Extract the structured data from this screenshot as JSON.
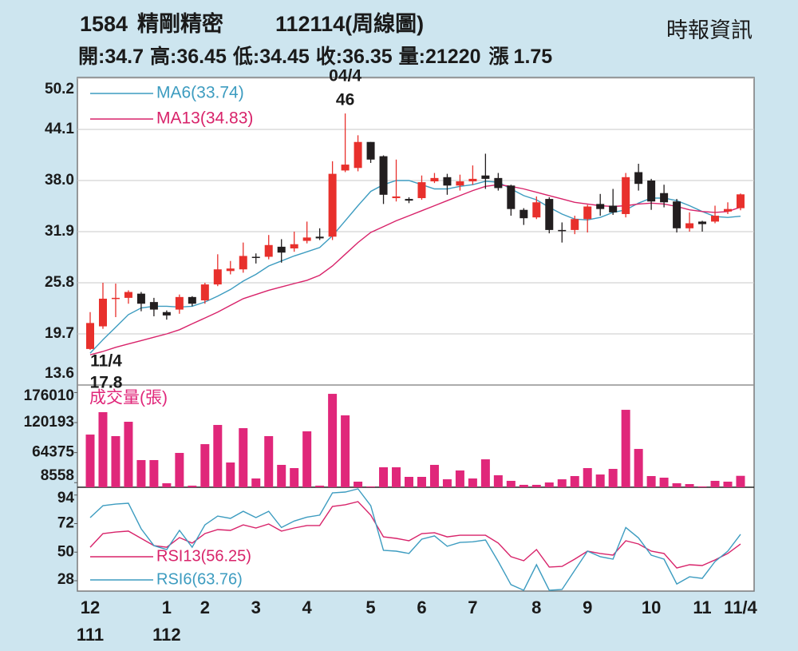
{
  "header": {
    "code": "1584",
    "name": "精剛精密",
    "period": "112114(周線圖)",
    "source": "時報資訊",
    "quote": [
      {
        "label": "開:",
        "value": 34.7
      },
      {
        "label": "高:",
        "value": 36.45
      },
      {
        "label": "低:",
        "value": 34.45
      },
      {
        "label": "收:",
        "value": 36.35
      },
      {
        "label": "量:",
        "value": 21220
      },
      {
        "label": "漲",
        "value": 1.75
      }
    ]
  },
  "chart_data": [
    {
      "type": "candlestick",
      "open": [
        17.9,
        20.6,
        23.9,
        24.0,
        24.5,
        23.5,
        22.3,
        22.6,
        24.1,
        23.7,
        25.6,
        27.2,
        27.4,
        28.9,
        28.9,
        30.1,
        29.9,
        30.8,
        31.3,
        31.3,
        39.2,
        39.5,
        42.6,
        40.9,
        35.9,
        35.8,
        35.9,
        37.9,
        38.4,
        37.4,
        37.9,
        38.6,
        38.3,
        37.4,
        34.5,
        33.6,
        35.8,
        32.1,
        32.1,
        33.4,
        35.2,
        35.0,
        34.0,
        39.0,
        38.0,
        36.5,
        35.5,
        32.3,
        33.1,
        33.1,
        34.3,
        34.7
      ],
      "high": [
        22.3,
        25.8,
        25.7,
        24.9,
        24.7,
        24.0,
        22.5,
        24.4,
        24.2,
        25.8,
        29.2,
        28.4,
        30.6,
        29.3,
        31.5,
        31.0,
        31.9,
        33.1,
        32.3,
        40.3,
        46,
        43.4,
        42.6,
        41.0,
        40.5,
        36.0,
        38.6,
        38.9,
        38.8,
        38.7,
        39.8,
        41.2,
        38.9,
        37.5,
        34.7,
        36.1,
        36.0,
        33.0,
        33.8,
        35.1,
        36.4,
        37.0,
        38.9,
        40.0,
        38.2,
        37.5,
        35.8,
        34.2,
        33.2,
        35.0,
        35.4,
        36.45
      ],
      "low": [
        17.8,
        20.3,
        21.7,
        23.3,
        22.4,
        21.8,
        21.4,
        22.1,
        23.0,
        23.3,
        25.4,
        26.8,
        27.0,
        28.1,
        28.6,
        28.2,
        29.5,
        30.5,
        30.9,
        30.9,
        39.0,
        39.1,
        40.1,
        35.2,
        35.5,
        35.3,
        35.7,
        37.7,
        36.3,
        36.8,
        37.5,
        37.0,
        36.8,
        33.8,
        32.7,
        33.4,
        31.7,
        30.6,
        31.6,
        31.8,
        33.8,
        33.9,
        33.6,
        36.8,
        34.5,
        34.8,
        31.8,
        31.9,
        31.9,
        32.9,
        34.0,
        34.45
      ],
      "close": [
        21.0,
        23.9,
        24.0,
        24.7,
        23.3,
        22.6,
        21.9,
        24.1,
        23.3,
        25.6,
        27.4,
        27.5,
        29.0,
        28.8,
        30.3,
        29.4,
        30.4,
        31.2,
        31.1,
        38.8,
        39.9,
        42.6,
        40.5,
        36.3,
        36.1,
        35.6,
        37.8,
        38.3,
        37.4,
        37.9,
        38.2,
        38.2,
        37.1,
        34.6,
        33.5,
        35.4,
        32.1,
        32.0,
        33.4,
        34.9,
        34.6,
        34.2,
        38.4,
        37.6,
        35.5,
        35.4,
        32.3,
        32.9,
        32.8,
        33.8,
        34.6,
        36.35
      ],
      "up_color": "#e8302c",
      "down_color": "#221e1f",
      "series": [
        {
          "name": "MA6(33.74)",
          "color": "#3d9cc0",
          "values": [
            17.4,
            19.0,
            20.5,
            22.0,
            22.8,
            23.0,
            23.0,
            22.9,
            23.0,
            23.5,
            24.2,
            25.0,
            26.0,
            26.8,
            27.8,
            28.4,
            29.0,
            29.5,
            30.0,
            31.4,
            33.2,
            35.0,
            36.7,
            37.5,
            38.0,
            38.0,
            37.5,
            37.0,
            37.0,
            37.3,
            37.5,
            37.9,
            37.8,
            37.0,
            36.2,
            35.7,
            34.8,
            34.0,
            33.4,
            33.3,
            33.6,
            34.2,
            34.5,
            35.3,
            35.9,
            35.9,
            35.6,
            35.0,
            34.3,
            33.7,
            33.6,
            33.74
          ]
        },
        {
          "name": "MA13(34.83)",
          "color": "#d8236a",
          "values": [
            17.2,
            17.6,
            18.1,
            18.5,
            18.9,
            19.3,
            19.7,
            20.2,
            20.9,
            21.6,
            22.3,
            23.1,
            23.9,
            24.4,
            24.9,
            25.3,
            25.7,
            26.1,
            26.7,
            27.8,
            29.2,
            30.6,
            31.8,
            32.5,
            33.2,
            33.8,
            34.4,
            35.0,
            35.6,
            36.2,
            36.8,
            37.3,
            37.5,
            37.3,
            37.0,
            36.6,
            36.2,
            35.8,
            35.4,
            35.2,
            35.0,
            34.9,
            35.0,
            35.2,
            35.3,
            35.2,
            34.9,
            34.5,
            34.3,
            34.2,
            34.3,
            34.83
          ]
        }
      ],
      "annotations": [
        {
          "text": "04/4",
          "value": 46
        },
        {
          "text": "11/4",
          "value": 17.8
        }
      ],
      "ylim": [
        13.6,
        50.2
      ],
      "yticks": [
        50.2,
        44.1,
        {
          "value": 38,
          "label": "38.0"
        },
        31.9,
        25.8,
        19.7,
        13.6
      ],
      "grid": true
    },
    {
      "type": "bar",
      "series": [
        {
          "name": "成交量(張)",
          "color": "#e0277a",
          "values": [
            97900,
            139500,
            95000,
            121700,
            50500,
            50500,
            7400,
            63800,
            3000,
            80100,
            115800,
            46000,
            109800,
            16300,
            95000,
            41600,
            35600,
            103900,
            3000,
            173600,
            133600,
            10400,
            1500,
            37100,
            37100,
            19300,
            19300,
            41600,
            14800,
            31200,
            16300,
            51900,
            22300,
            11900,
            4500,
            4500,
            8900,
            14800,
            20800,
            35600,
            23700,
            34100,
            143900,
            71200,
            20800,
            17800,
            7400,
            5900,
            1500,
            11900,
            10400,
            21220
          ]
        }
      ],
      "ylim": [
        0,
        190000
      ],
      "yticks": [
        176010,
        120193,
        64375,
        8558
      ],
      "grid": false
    },
    {
      "type": "line",
      "categories": [
        "12",
        null,
        null,
        null,
        null,
        null,
        "1",
        null,
        null,
        "2",
        null,
        null,
        null,
        "3",
        null,
        null,
        null,
        "4",
        null,
        null,
        null,
        null,
        "5",
        null,
        null,
        null,
        "6",
        null,
        null,
        null,
        "7",
        null,
        null,
        null,
        null,
        "8",
        null,
        null,
        null,
        "9",
        null,
        null,
        null,
        null,
        "10",
        null,
        null,
        null,
        "11",
        null,
        null,
        "11/4"
      ],
      "year_labels": [
        "111",
        null,
        null,
        null,
        null,
        null,
        "112",
        null,
        null,
        null,
        null,
        null,
        null,
        null,
        null,
        null,
        null,
        null,
        null,
        null,
        null,
        null,
        null,
        null,
        null,
        null,
        null,
        null,
        null,
        null,
        null,
        null,
        null,
        null,
        null,
        null,
        null,
        null,
        null,
        null,
        null,
        null,
        null,
        null,
        null,
        null,
        null,
        null,
        null,
        null,
        null,
        null
      ],
      "series": [
        {
          "name": "RSI13(56.25)",
          "color": "#d8236a",
          "values": [
            53.8,
            64.3,
            65.5,
            66.2,
            60.6,
            55.0,
            53.8,
            61.2,
            57.0,
            64.3,
            67.4,
            66.8,
            71.0,
            68.6,
            71.7,
            66.2,
            68.6,
            70.5,
            70.5,
            85.2,
            86.5,
            88.9,
            78.5,
            61.8,
            60.6,
            58.8,
            64.3,
            65.0,
            61.8,
            63.0,
            63.0,
            63.0,
            57.0,
            46.5,
            43.4,
            52.0,
            38.5,
            39.0,
            44.6,
            50.8,
            49.0,
            47.7,
            58.8,
            56.3,
            50.8,
            49.0,
            37.8,
            40.3,
            39.7,
            44.0,
            49.0,
            56.25
          ]
        },
        {
          "name": "RSI6(63.76)",
          "color": "#3d9cc0",
          "values": [
            76.6,
            85.8,
            87.0,
            87.7,
            68.0,
            55.0,
            52.0,
            66.8,
            53.8,
            71.0,
            77.8,
            76.0,
            81.5,
            76.6,
            81.5,
            69.0,
            74.0,
            77.0,
            78.5,
            95.7,
            96.3,
            98.8,
            85.8,
            51.4,
            50.8,
            49.0,
            60.0,
            62.5,
            54.5,
            57.5,
            58.0,
            59.4,
            42.8,
            25.0,
            20.6,
            40.3,
            20.6,
            21.2,
            36.0,
            50.8,
            46.5,
            44.6,
            69.0,
            61.0,
            47.7,
            44.6,
            25.5,
            31.0,
            29.8,
            42.8,
            50.8,
            63.76
          ]
        }
      ],
      "ylim": [
        20,
        100
      ],
      "yticks": [
        94,
        72,
        50,
        28
      ],
      "grid": false
    }
  ]
}
